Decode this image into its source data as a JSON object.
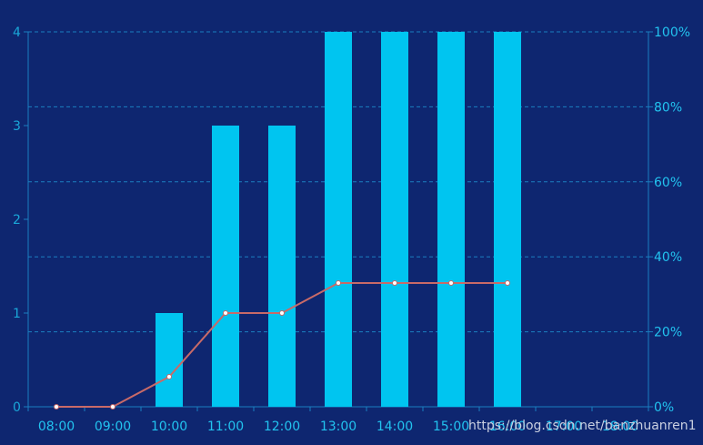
{
  "chart_data": {
    "type": "bar+line",
    "categories": [
      "08:00",
      "09:00",
      "10:00",
      "11:00",
      "12:00",
      "13:00",
      "14:00",
      "15:00",
      "16:00",
      "17:00",
      "18:00"
    ],
    "series": [
      {
        "type": "bar",
        "axis": "left",
        "values": [
          0,
          0,
          1,
          3,
          3,
          4,
          4,
          4,
          4,
          0,
          0
        ]
      },
      {
        "type": "line",
        "axis": "right",
        "values": [
          0,
          0,
          8,
          25,
          25,
          33,
          33,
          33,
          33,
          null,
          null
        ]
      }
    ],
    "y_left": {
      "ylim": [
        0,
        4
      ],
      "ticks": [
        "0",
        "1",
        "2",
        "3",
        "4"
      ]
    },
    "y_right": {
      "ylim": [
        0,
        100
      ],
      "ticks": [
        "0%",
        "20%",
        "40%",
        "60%",
        "80%",
        "100%"
      ]
    },
    "grid": true,
    "colors": {
      "background": "#0e2670",
      "bar": "#00c5f0",
      "line": "#c86a68",
      "marker": "#ffffff",
      "grid": "#1b7fc0",
      "axis": "#1b7fc0"
    }
  },
  "watermark": "https://blog.csdn.net/banzhuanren1"
}
